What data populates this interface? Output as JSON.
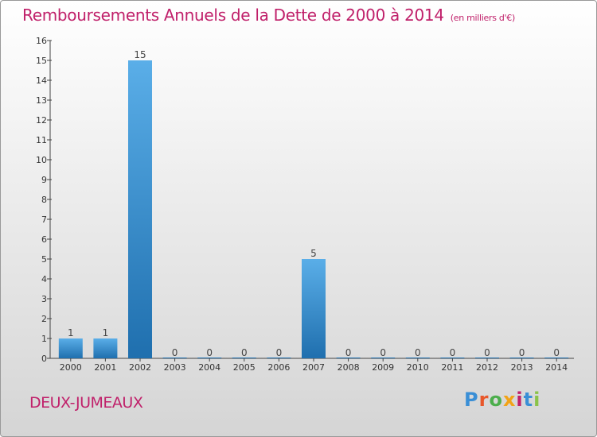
{
  "header": {
    "title": "Remboursements Annuels de la Dette de 2000 à 2014",
    "unit": "(en milliers d'€)"
  },
  "footer": {
    "commune": "DEUX-JUMEAUX",
    "logo": [
      "P",
      "r",
      "o",
      "x",
      "i",
      "t",
      "i"
    ]
  },
  "colors": {
    "title": "#c0206a",
    "bar_top": "#5aaee8",
    "bar_bottom": "#1f6fae"
  },
  "chart_data": {
    "type": "bar",
    "title": "Remboursements Annuels de la Dette de 2000 à 2014",
    "subtitle": "(en milliers d'€)",
    "categories": [
      "2000",
      "2001",
      "2002",
      "2003",
      "2004",
      "2005",
      "2006",
      "2007",
      "2008",
      "2009",
      "2010",
      "2011",
      "2012",
      "2013",
      "2014"
    ],
    "values": [
      1,
      1,
      15,
      0,
      0,
      0,
      0,
      5,
      0,
      0,
      0,
      0,
      0,
      0,
      0
    ],
    "yticks": [
      0,
      1,
      2,
      3,
      4,
      5,
      6,
      7,
      8,
      9,
      10,
      11,
      12,
      13,
      14,
      15,
      16
    ],
    "ylim": [
      0,
      16
    ],
    "xlabel": "",
    "ylabel": "",
    "grid": false
  }
}
